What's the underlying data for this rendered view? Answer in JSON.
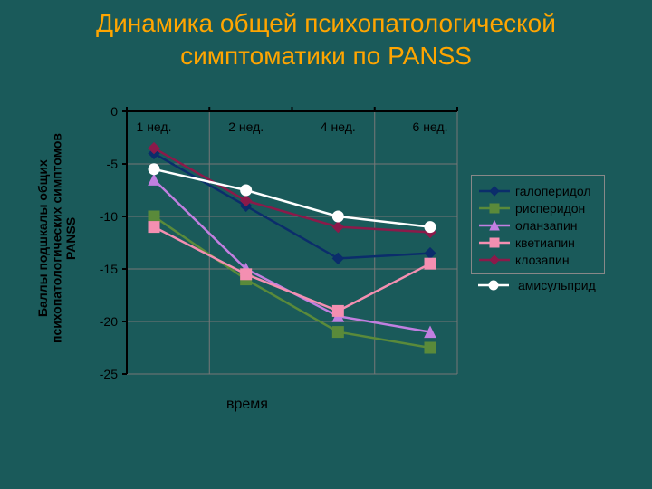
{
  "title": "Динамика общей психопатологической симптоматики по PANSS",
  "chart": {
    "type": "line",
    "background_color": "#1a5a5a",
    "grid_color": "#777777",
    "axis_color": "#000000",
    "axis_width": 2,
    "tick_length": 5,
    "title_color": "#ffa500",
    "title_fontsize": 28,
    "label_fontsize": 14,
    "ylabel": "Баллы подшкалы общих психопатологических симптомов PANSS",
    "xlabel": "время",
    "categories": [
      "1 нед.",
      "2 нед.",
      "4 нед.",
      "6 нед."
    ],
    "ylim": [
      -25,
      0
    ],
    "ytick_step": 5,
    "yticks": [
      0,
      -5,
      -10,
      -15,
      -20,
      -25
    ],
    "marker_size": 6,
    "line_width": 2.5,
    "series": [
      {
        "id": "haloperidol",
        "label": "галоперидол",
        "color": "#0b2d6b",
        "marker": "diamond",
        "values": [
          -4,
          -9,
          -14,
          -13.5
        ]
      },
      {
        "id": "risperidone",
        "label": "рисперидон",
        "color": "#5a8a3a",
        "marker": "square",
        "values": [
          -10,
          -16,
          -21,
          -22.5
        ]
      },
      {
        "id": "olanzapine",
        "label": "оланзапин",
        "color": "#c17fe0",
        "marker": "triangle",
        "values": [
          -6.5,
          -15,
          -19.5,
          -21
        ]
      },
      {
        "id": "quetiapine",
        "label": "кветиапин",
        "color": "#f48fb1",
        "marker": "square",
        "values": [
          -11,
          -15.5,
          -19,
          -14.5
        ]
      },
      {
        "id": "clozapine",
        "label": "клозапин",
        "color": "#8b1a4a",
        "marker": "diamond",
        "values": [
          -3.5,
          -8.5,
          -11,
          -11.5
        ]
      },
      {
        "id": "amisulpride",
        "label": "амисульприд",
        "color": "#ffffff",
        "marker": "circle",
        "values": [
          -5.5,
          -7.5,
          -10,
          -11
        ]
      }
    ],
    "legend": {
      "position": "right",
      "border_color": "#888888",
      "text_color": "#000000",
      "boxed_items": 5
    }
  }
}
